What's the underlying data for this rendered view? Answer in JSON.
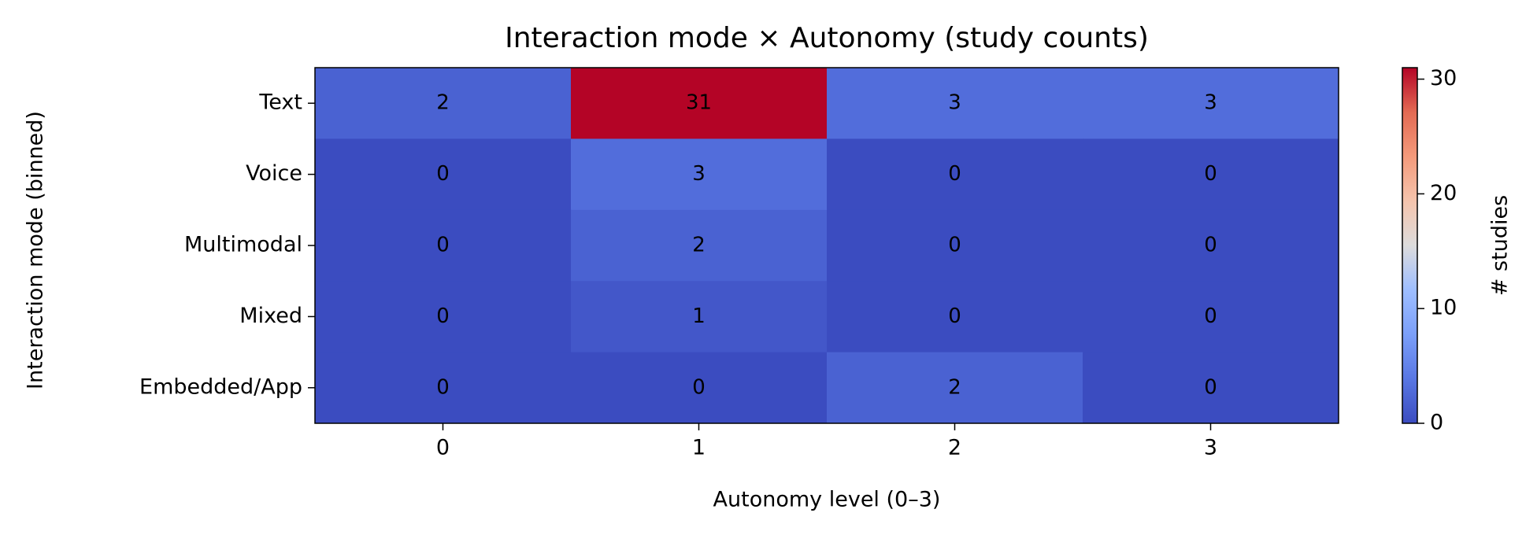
{
  "chart_data": {
    "type": "heatmap",
    "title": "Interaction mode × Autonomy (study counts)",
    "x_label": "Autonomy level (0–3)",
    "y_label": "Interaction mode (binned)",
    "x_categories": [
      "0",
      "1",
      "2",
      "3"
    ],
    "y_categories": [
      "Text",
      "Voice",
      "Multimodal",
      "Mixed",
      "Embedded/App"
    ],
    "values": [
      [
        2,
        31,
        3,
        3
      ],
      [
        0,
        3,
        0,
        0
      ],
      [
        0,
        2,
        0,
        0
      ],
      [
        0,
        1,
        0,
        0
      ],
      [
        0,
        0,
        2,
        0
      ]
    ],
    "colormap": "coolwarm",
    "clim": [
      0,
      31
    ],
    "colorbar_ticks": [
      0,
      10,
      20,
      30
    ],
    "colorbar_label": "# studies"
  }
}
